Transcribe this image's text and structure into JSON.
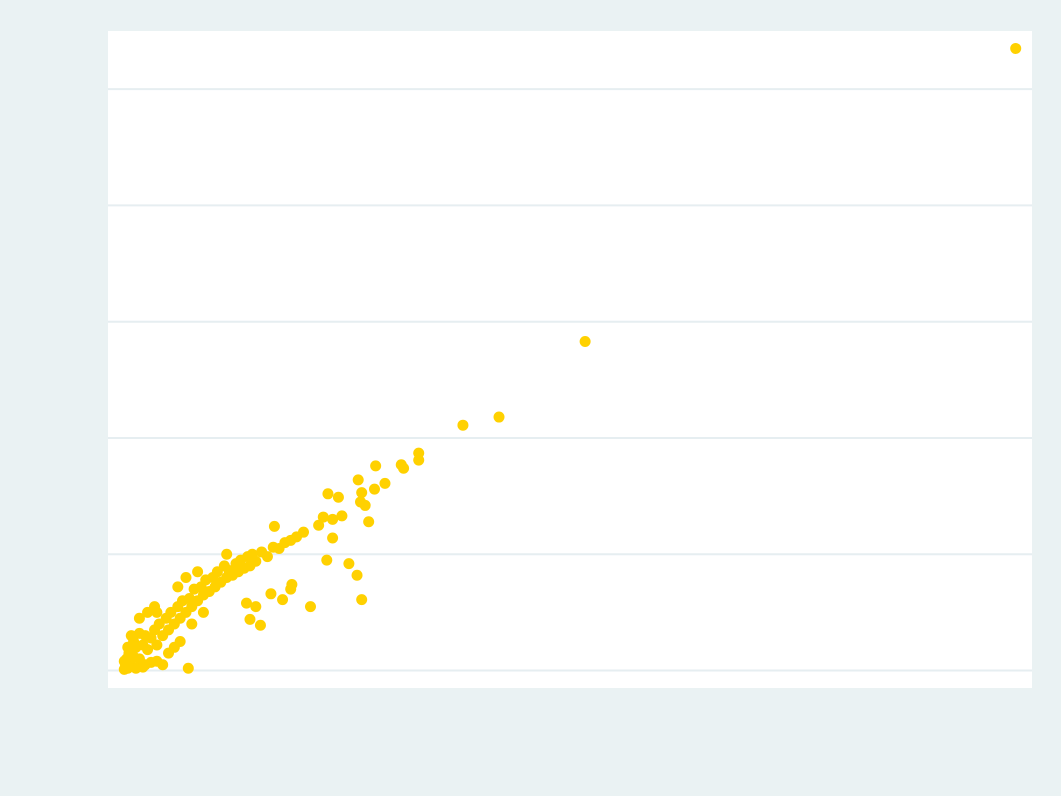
{
  "chart_data": {
    "type": "scatter",
    "color": "#ffd100",
    "grid": true,
    "xlim": [
      -0.12,
      7.82
    ],
    "ylim": [
      -0.15,
      5.5
    ],
    "yticks": [
      0,
      1,
      2,
      3,
      4,
      5
    ],
    "x": [
      7.68,
      3.98,
      3.24,
      2.93,
      2.55,
      2.55,
      2.4,
      2.42,
      2.18,
      2.26,
      2.17,
      2.03,
      1.77,
      1.86,
      2.06,
      2.05,
      2.09,
      2.12,
      1.89,
      1.81,
      1.73,
      1.31,
      1.69,
      1.81,
      1.56,
      1.76,
      1.95,
      2.02,
      2.06,
      1.62,
      1.46,
      1.45,
      1.38,
      1.28,
      1.19,
      1.1,
      1.07,
      1.15,
      0.57,
      0.02,
      0.03,
      0.05,
      0.04,
      0.06,
      0.08,
      0.1,
      0.12,
      0.1,
      0.15,
      0.18,
      0.2,
      0.15,
      0.22,
      0.25,
      0.28,
      0.3,
      0.32,
      0.35,
      0.38,
      0.4,
      0.42,
      0.45,
      0.48,
      0.5,
      0.52,
      0.55,
      0.58,
      0.6,
      0.62,
      0.65,
      0.68,
      0.7,
      0.72,
      0.75,
      0.78,
      0.8,
      0.82,
      0.85,
      0.88,
      0.9,
      0.92,
      0.95,
      0.98,
      1.0,
      1.02,
      1.05,
      1.08,
      1.1,
      1.12,
      1.15,
      1.2,
      1.25,
      1.3,
      1.35,
      1.4,
      1.45,
      1.5,
      0.3,
      0.28,
      0.55,
      0.48,
      0.3,
      0.45,
      0.5,
      0.4,
      0.2,
      0.25,
      0.35,
      0.6,
      0.7,
      0.15,
      0.22,
      0.08,
      0.05,
      0.02,
      0.12,
      0.18,
      0.65,
      0.9
    ],
    "values": [
      5.35,
      2.83,
      2.18,
      2.11,
      1.87,
      1.81,
      1.77,
      1.74,
      1.76,
      1.61,
      1.56,
      1.64,
      1.52,
      1.49,
      1.53,
      1.45,
      1.42,
      1.28,
      1.33,
      1.3,
      1.32,
      1.24,
      1.25,
      1.14,
      1.19,
      0.95,
      0.92,
      0.82,
      0.61,
      0.55,
      0.74,
      0.7,
      0.61,
      0.66,
      0.39,
      0.44,
      0.58,
      0.55,
      0.02,
      0.01,
      0.05,
      0.02,
      0.1,
      0.15,
      0.04,
      0.12,
      0.2,
      0.25,
      0.1,
      0.22,
      0.3,
      0.32,
      0.18,
      0.28,
      0.35,
      0.22,
      0.4,
      0.3,
      0.45,
      0.35,
      0.5,
      0.4,
      0.55,
      0.45,
      0.6,
      0.5,
      0.62,
      0.55,
      0.7,
      0.6,
      0.72,
      0.65,
      0.78,
      0.68,
      0.8,
      0.72,
      0.85,
      0.76,
      0.9,
      0.8,
      0.86,
      0.82,
      0.92,
      0.85,
      0.95,
      0.88,
      0.98,
      0.9,
      1.0,
      0.94,
      1.02,
      0.98,
      1.06,
      1.05,
      1.1,
      1.12,
      1.15,
      0.5,
      0.55,
      0.8,
      0.72,
      0.08,
      0.2,
      0.25,
      0.15,
      0.05,
      0.07,
      0.05,
      0.4,
      0.5,
      0.45,
      0.5,
      0.3,
      0.2,
      0.08,
      0.02,
      0.03,
      0.85,
      1.0
    ]
  }
}
